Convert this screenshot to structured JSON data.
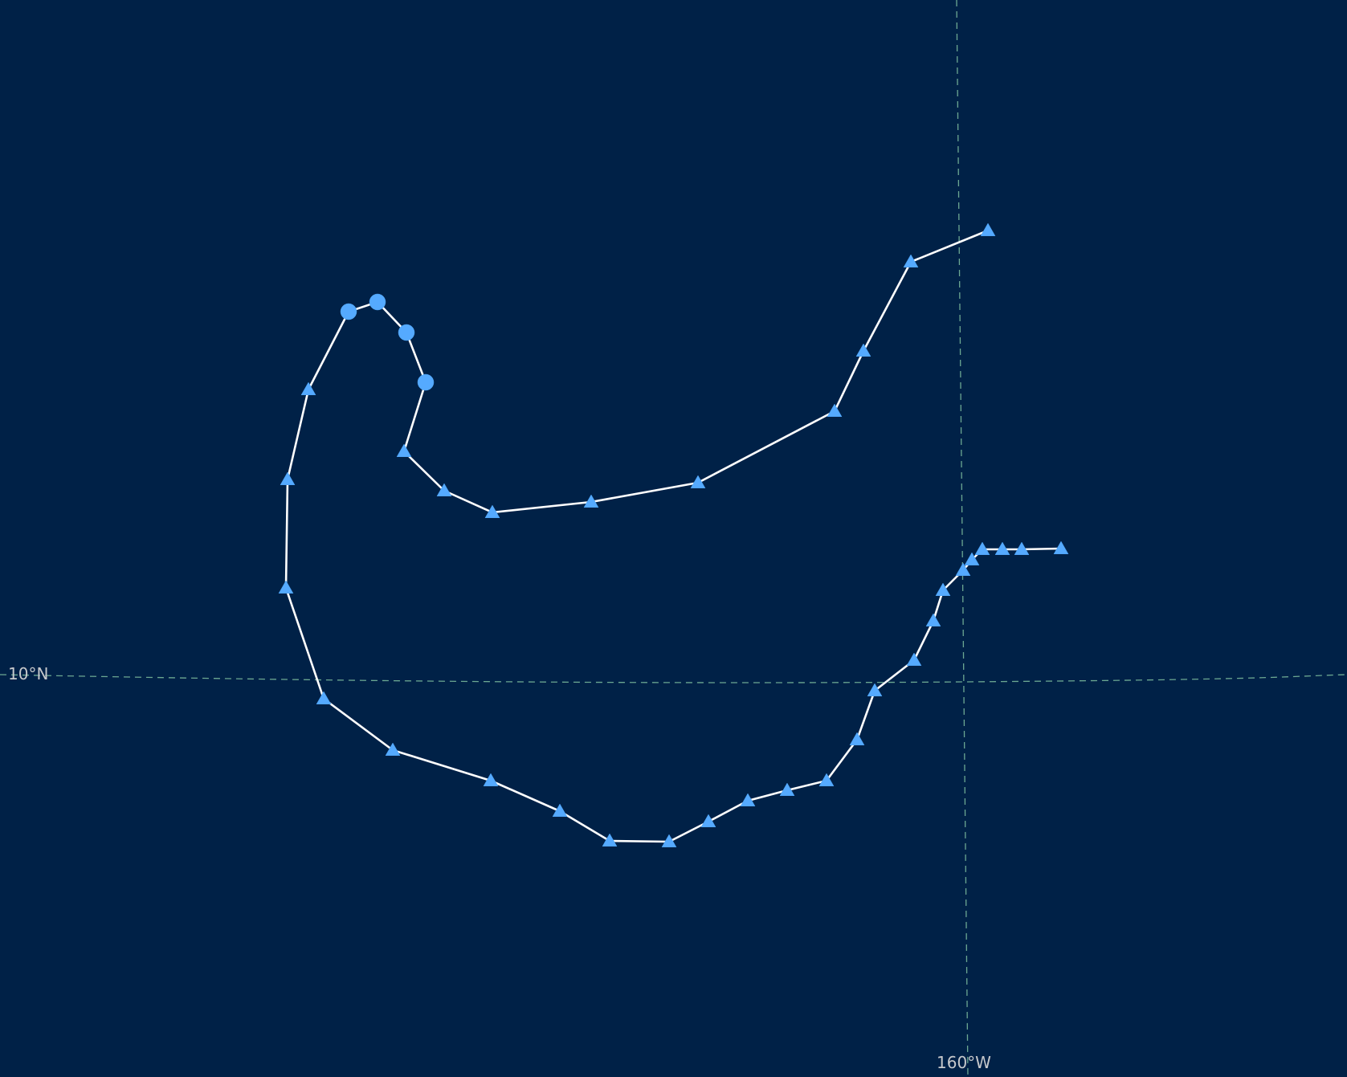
{
  "map": {
    "background_color": "#002147",
    "track_color": "#ffffff",
    "marker_color": "#55aaff",
    "graticule_color": "#7fbfa0",
    "graticule": {
      "latitude_label": "10°N",
      "longitude_label": "160°W"
    },
    "marker_legend_semantics": {
      "circle": "circle-marker",
      "triangle": "triangle-marker"
    }
  }
}
